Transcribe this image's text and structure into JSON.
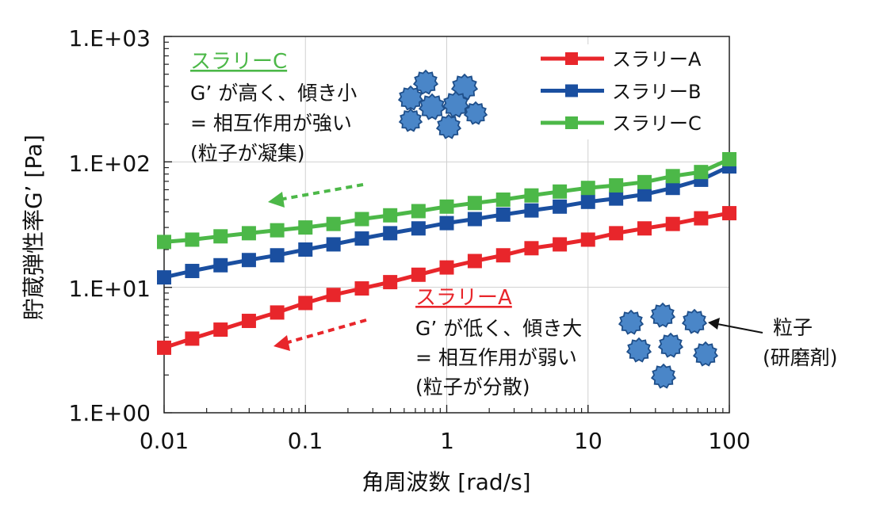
{
  "chart_data": {
    "type": "line",
    "xscale": "log",
    "yscale": "log",
    "xlim": [
      0.01,
      100
    ],
    "ylim": [
      1,
      1000
    ],
    "xlabel": "角周波数 [rad/s]",
    "ylabel": "貯蔵弾性率G’ [Pa]",
    "x_ticks": [
      "0.01",
      "0.1",
      "1",
      "10",
      "100"
    ],
    "y_ticks": [
      "1.E+00",
      "1.E+01",
      "1.E+02",
      "1.E+03"
    ],
    "x": [
      0.01,
      0.0158,
      0.0251,
      0.0398,
      0.0631,
      0.1,
      0.158,
      0.251,
      0.398,
      0.631,
      1,
      1.58,
      2.51,
      3.98,
      6.31,
      10,
      15.8,
      25.1,
      39.8,
      63.1,
      100
    ],
    "series": [
      {
        "name": "スラリーA",
        "color": "#e8262b",
        "values": [
          3.3,
          3.9,
          4.6,
          5.4,
          6.3,
          7.5,
          8.7,
          9.8,
          11,
          12.6,
          14.4,
          16.2,
          18,
          20.5,
          22,
          24,
          27,
          29.5,
          32,
          35.5,
          39
        ]
      },
      {
        "name": "スラリーB",
        "color": "#1a4fa0",
        "values": [
          12,
          13.5,
          15,
          16.5,
          18,
          20,
          22,
          24.5,
          27,
          29.5,
          32.5,
          35,
          38,
          41,
          44,
          48,
          51,
          55,
          62,
          72,
          92
        ]
      },
      {
        "name": "スラリーC",
        "color": "#4cb848",
        "values": [
          23,
          24,
          25.5,
          27,
          28.5,
          30,
          32,
          35,
          37.5,
          40.5,
          44,
          47,
          50,
          54,
          58,
          62,
          65,
          69,
          77,
          83,
          105
        ]
      }
    ],
    "annotations": {
      "slurry_c": {
        "title": "スラリーC",
        "lines": [
          "G’ が高く、傾き小",
          "= 相互作用が強い",
          "(粒子が凝集)"
        ]
      },
      "slurry_a": {
        "title": "スラリーA",
        "lines": [
          "G’ が低く、傾き大",
          "= 相互作用が弱い",
          "(粒子が分散)"
        ]
      },
      "particle_label": [
        "粒子",
        "(研磨剤)"
      ]
    }
  },
  "colors": {
    "red": "#e8262b",
    "blue": "#1a4fa0",
    "green": "#4cb848",
    "particle_fill": "#4a86c8",
    "particle_stroke": "#1f4f8a"
  }
}
